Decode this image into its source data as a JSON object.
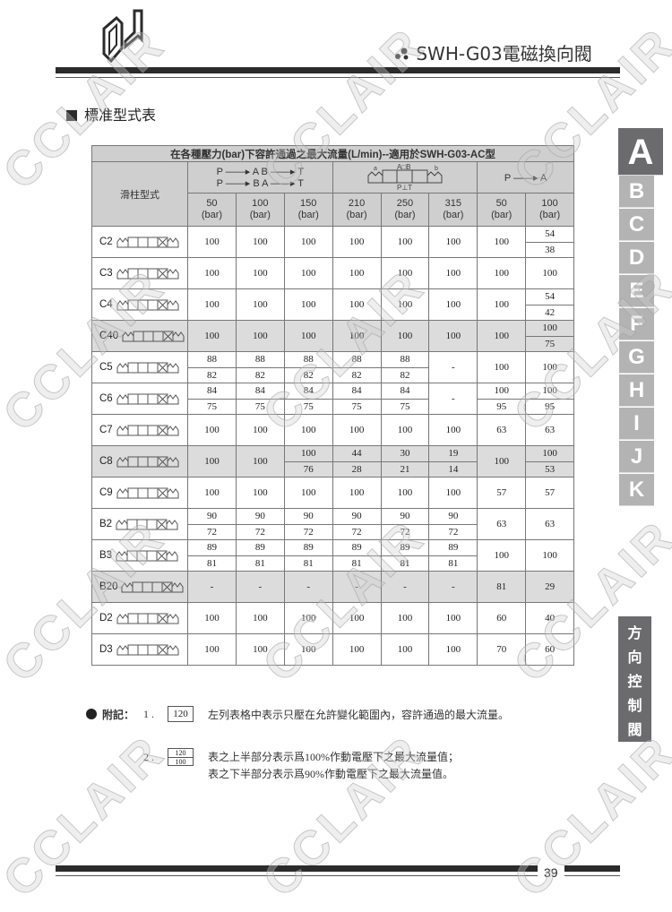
{
  "header": {
    "title": "SWH-G03電磁換向閥",
    "logo_icon": "cclair-logo-icon"
  },
  "watermark": "CCLAIR",
  "section_title": "標准型式表",
  "table": {
    "caption": "在各種壓力(bar)下容許通過之最大流量(L/min)--適用於SWH-G03-AC型",
    "spool_header": "滑柱型式",
    "group1_line1": "P ——▸ A   B ——▸ T",
    "group1_line2": "P ——▸ B   A ——▸ T",
    "group3": "P ——▸ A",
    "pressures": [
      [
        "50",
        "(bar)"
      ],
      [
        "100",
        "(bar)"
      ],
      [
        "150",
        "(bar)"
      ],
      [
        "210",
        "(bar)"
      ],
      [
        "250",
        "(bar)"
      ],
      [
        "315",
        "(bar)"
      ],
      [
        "50",
        "(bar)"
      ],
      [
        "100",
        "(bar)"
      ]
    ],
    "rows": [
      {
        "name": "C2",
        "gray": false,
        "cells": [
          "100",
          "100",
          "100",
          "100",
          "100",
          "100",
          "100",
          [
            "54",
            "38"
          ]
        ]
      },
      {
        "name": "C3",
        "gray": false,
        "cells": [
          "100",
          "100",
          "100",
          "100",
          "100",
          "100",
          "100",
          "100"
        ]
      },
      {
        "name": "C4",
        "gray": false,
        "cells": [
          "100",
          "100",
          "100",
          "100",
          "100",
          "100",
          "100",
          [
            "54",
            "42"
          ]
        ]
      },
      {
        "name": "C40",
        "gray": true,
        "cells": [
          "100",
          "100",
          "100",
          "100",
          "100",
          "100",
          "100",
          [
            "100",
            "75"
          ]
        ]
      },
      {
        "name": "C5",
        "gray": false,
        "cells": [
          [
            "88",
            "82"
          ],
          [
            "88",
            "82"
          ],
          [
            "88",
            "82"
          ],
          [
            "88",
            "82"
          ],
          [
            "88",
            "82"
          ],
          "-",
          "100",
          "100"
        ]
      },
      {
        "name": "C6",
        "gray": false,
        "cells": [
          [
            "84",
            "75"
          ],
          [
            "84",
            "75"
          ],
          [
            "84",
            "75"
          ],
          [
            "84",
            "75"
          ],
          [
            "84",
            "75"
          ],
          "-",
          [
            "100",
            "95"
          ],
          [
            "100",
            "95"
          ]
        ]
      },
      {
        "name": "C7",
        "gray": false,
        "cells": [
          "100",
          "100",
          "100",
          "100",
          "100",
          "100",
          "63",
          "63"
        ]
      },
      {
        "name": "C8",
        "gray": true,
        "cells": [
          "100",
          "100",
          [
            "100",
            "76"
          ],
          [
            "44",
            "28"
          ],
          [
            "30",
            "21"
          ],
          [
            "19",
            "14"
          ],
          "100",
          [
            "100",
            "53"
          ]
        ]
      },
      {
        "name": "C9",
        "gray": false,
        "cells": [
          "100",
          "100",
          "100",
          "100",
          "100",
          "100",
          "57",
          "57"
        ]
      },
      {
        "name": "B2",
        "gray": false,
        "cells": [
          [
            "90",
            "72"
          ],
          [
            "90",
            "72"
          ],
          [
            "90",
            "72"
          ],
          [
            "90",
            "72"
          ],
          [
            "90",
            "72"
          ],
          [
            "90",
            "72"
          ],
          "63",
          "63"
        ]
      },
      {
        "name": "B3",
        "gray": false,
        "cells": [
          [
            "89",
            "81"
          ],
          [
            "89",
            "81"
          ],
          [
            "89",
            "81"
          ],
          [
            "89",
            "81"
          ],
          [
            "89",
            "81"
          ],
          [
            "89",
            "81"
          ],
          "100",
          "100"
        ]
      },
      {
        "name": "B20",
        "gray": true,
        "cells": [
          "-",
          "-",
          "-",
          "-",
          "-",
          "-",
          "81",
          "29"
        ]
      },
      {
        "name": "D2",
        "gray": false,
        "cells": [
          "100",
          "100",
          "100",
          "100",
          "100",
          "100",
          "60",
          "40"
        ]
      },
      {
        "name": "D3",
        "gray": false,
        "cells": [
          "100",
          "100",
          "100",
          "100",
          "100",
          "100",
          "70",
          "60"
        ]
      }
    ]
  },
  "side_tabs": [
    "A",
    "B",
    "C",
    "D",
    "E",
    "F",
    "G",
    "H",
    "I",
    "J",
    "K"
  ],
  "side_tab_active": "A",
  "vertical_tab": [
    "方",
    "向",
    "控",
    "制",
    "閥"
  ],
  "notes": {
    "label": "附記：",
    "n1": "1 .",
    "box1": "120",
    "text1": "左列表格中表示只壓在允許變化範圍內，容許通過的最大流量。",
    "n2": "2 .",
    "box2_top": "120",
    "box2_bottom": "100",
    "text2a": "表之上半部分表示爲100%作動電壓下之最大流量值；",
    "text2b": "表之下半部分表示爲90%作動電壓下之最大流量值。"
  },
  "page_number": "39",
  "colors": {
    "dark": "#2b2b2b",
    "tab_dark": "#6b6b6d",
    "tab_light": "#b3b3b3",
    "header_gray": "#cfcfcf",
    "row_gray": "#dcdcdc"
  }
}
